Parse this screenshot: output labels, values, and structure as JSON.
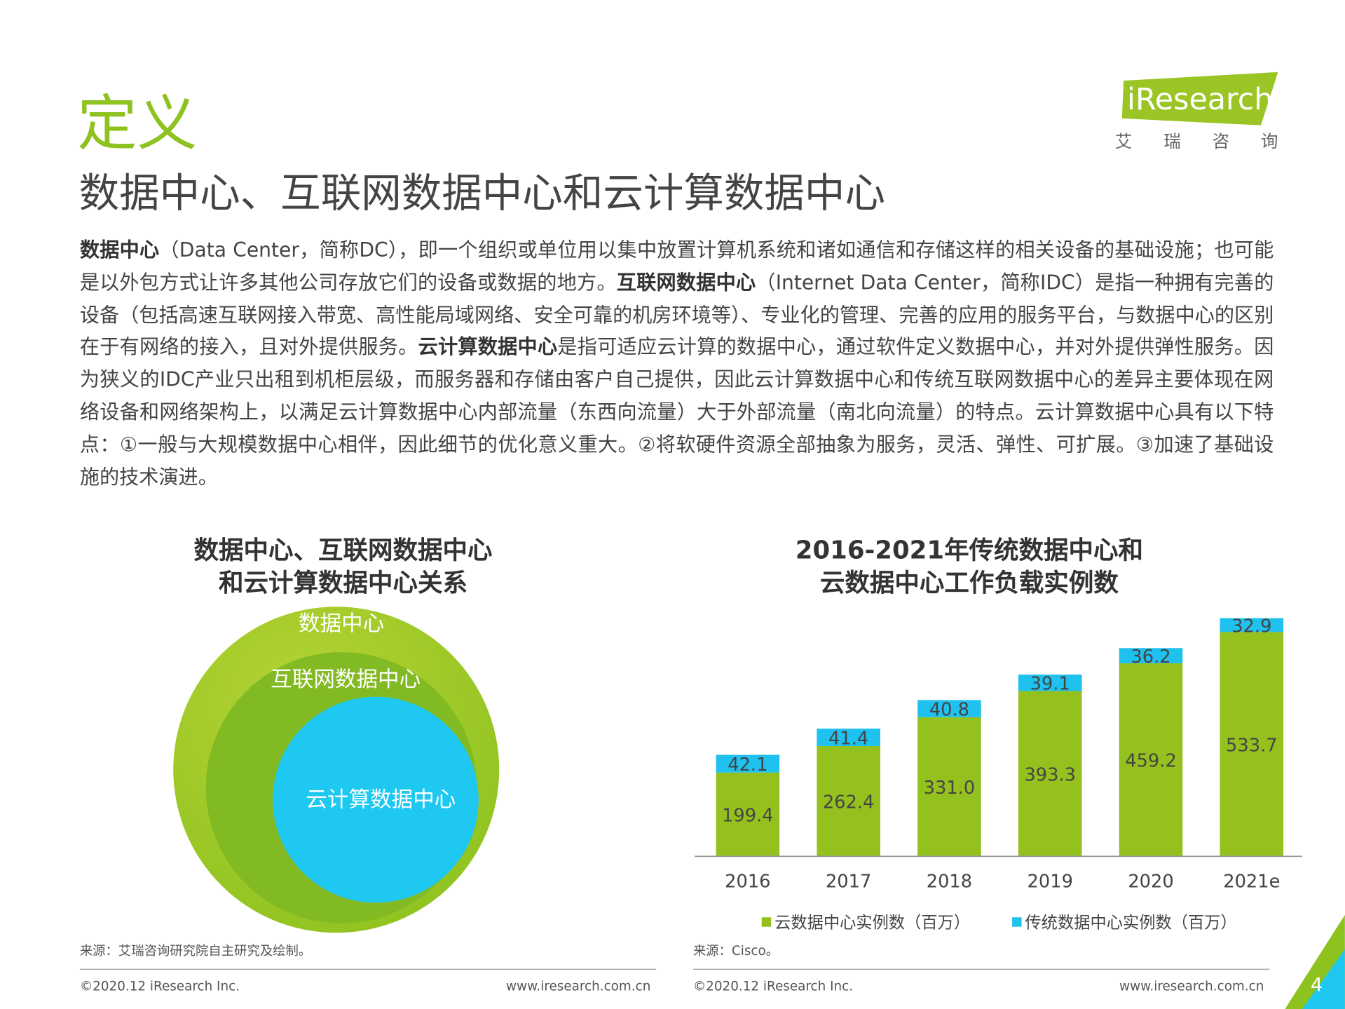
{
  "header": {
    "title": "定义",
    "subtitle": "数据中心、互联网数据中心和云计算数据中心",
    "logo": "iResearch",
    "logo_cn": "艾 瑞 咨 询"
  },
  "paragraph": [
    {
      "text": "数据中心",
      "bold": true
    },
    {
      "text": "（Data Center，简称DC），即一个组织或单位用以集中放置计算机系统和诸如通信和存储这样的相关设备的基础设施；也可能是以外包方式让许多其他公司存放它们的设备或数据的地方。"
    },
    {
      "text": "互联网数据中心",
      "bold": true
    },
    {
      "text": "（Internet Data Center，简称IDC）是指一种拥有完善的设备（包括高速互联网接入带宽、高性能局域网络、安全可靠的机房环境等）、专业化的管理、完善的应用的服务平台，与数据中心的区别在于有网络的接入，且对外提供服务。"
    },
    {
      "text": "云计算数据中心",
      "bold": true
    },
    {
      "text": "是指可适应云计算的数据中心，通过软件定义数据中心，并对外提供弹性服务。因为狭义的IDC产业只出租到机柜层级，而服务器和存储由客户自己提供，因此云计算数据中心和传统互联网数据中心的差异主要体现在网络设备和网络架构上，以满足云计算数据中心内部流量（东西向流量）大于外部流量（南北向流量）的特点。云计算数据中心具有以下特点：①一般与大规模数据中心相伴，因此细节的优化意义重大。②将软硬件资源全部抽象为服务，灵活、弹性、可扩展。③加速了基础设施的技术演进。"
    }
  ],
  "diagram": {
    "title": [
      "数据中心、互联网数据中心",
      "和云计算数据中心关系"
    ],
    "nodes": [
      {
        "label": "数据中心"
      },
      {
        "label": "互联网数据中心"
      },
      {
        "label": "云计算数据中心"
      }
    ],
    "source": "来源：艾瑞咨询研究院自主研究及绘制。"
  },
  "chart_data": {
    "type": "stacked-bar",
    "title": [
      "2016-2021年传统数据中心和",
      "云数据中心工作负载实例数"
    ],
    "categories": [
      "2016",
      "2017",
      "2018",
      "2019",
      "2020",
      "2021e"
    ],
    "series": [
      {
        "name": "云数据中心实例数（百万）",
        "color": "#95c11f",
        "values": [
          199.4,
          262.4,
          331.0,
          393.3,
          459.2,
          533.7
        ],
        "value_labels": [
          "199.4",
          "262.4",
          "331.0",
          "393.3",
          "459.2",
          "533.7"
        ]
      },
      {
        "name": "传统数据中心实例数（百万）",
        "color": "#1fc1ee",
        "values": [
          42.1,
          41.4,
          40.8,
          39.1,
          36.2,
          32.9
        ]
      }
    ],
    "ylim": [
      0,
      600
    ],
    "source": "来源：Cisco。"
  },
  "footer": {
    "left": [
      "©2020.12 iResearch Inc.",
      "©2020.12 iResearch Inc."
    ],
    "right": [
      "www.iresearch.com.cn",
      "www.iresearch.com.cn"
    ],
    "page": "4"
  }
}
